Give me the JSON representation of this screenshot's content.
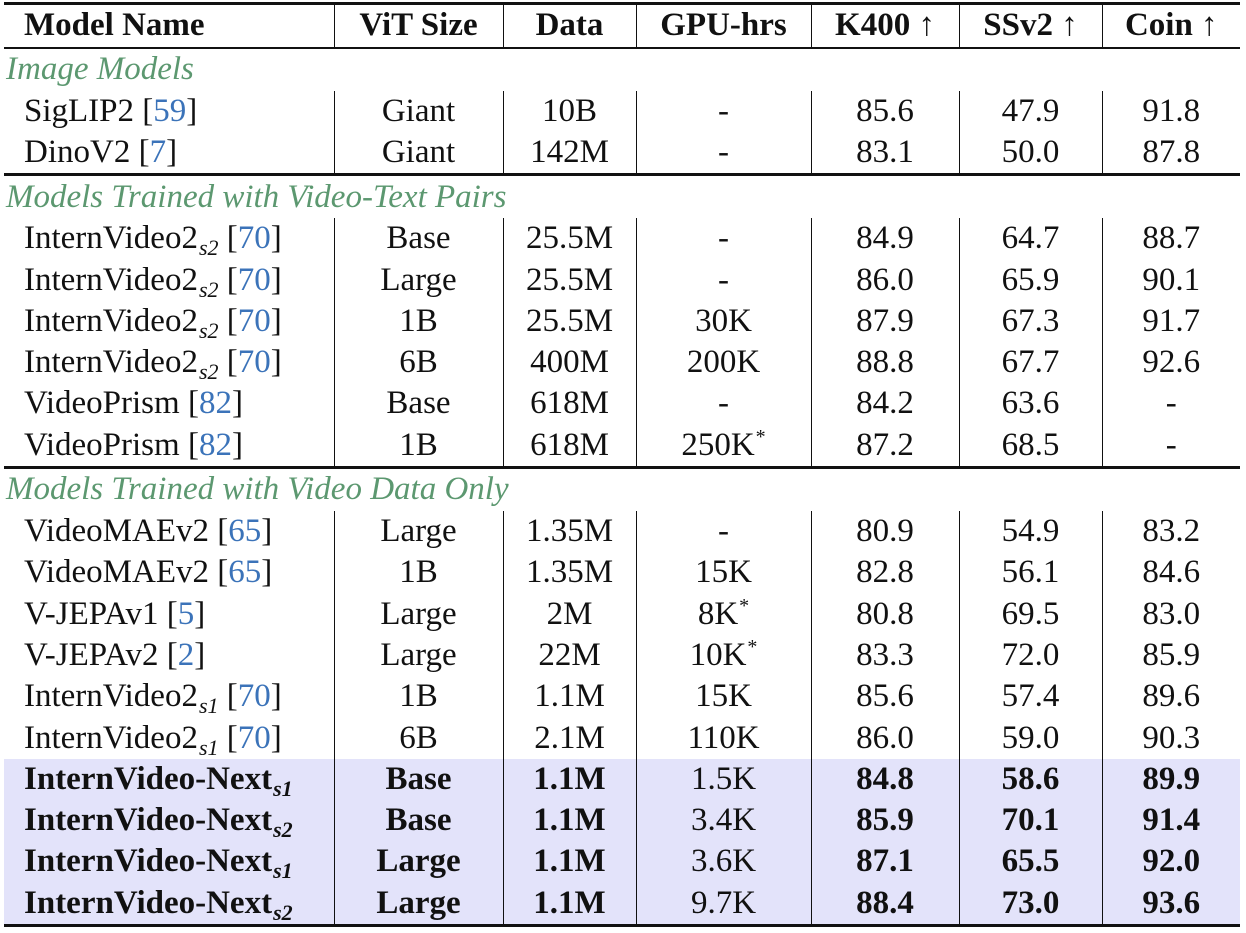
{
  "chart_data": {
    "type": "table",
    "columns": [
      "Model Name",
      "ViT Size",
      "Data",
      "GPU-hrs",
      "K400 ↑",
      "SSv2 ↑",
      "Coin ↑"
    ],
    "groups": [
      {
        "title": "Image Models",
        "rows": [
          {
            "name": "SigLIP2",
            "sub": "",
            "ref": "59",
            "vit": "Giant",
            "data": "10B",
            "gpu": "-",
            "gpu_star": "",
            "k400": "85.6",
            "ssv2": "47.9",
            "coin": "91.8"
          },
          {
            "name": "DinoV2",
            "sub": "",
            "ref": "7",
            "vit": "Giant",
            "data": "142M",
            "gpu": "-",
            "gpu_star": "",
            "k400": "83.1",
            "ssv2": "50.0",
            "coin": "87.8"
          }
        ]
      },
      {
        "title": "Models Trained with Video-Text Pairs",
        "rows": [
          {
            "name": "InternVideo2",
            "sub": "s2",
            "ref": "70",
            "vit": "Base",
            "data": "25.5M",
            "gpu": "-",
            "gpu_star": "",
            "k400": "84.9",
            "ssv2": "64.7",
            "coin": "88.7"
          },
          {
            "name": "InternVideo2",
            "sub": "s2",
            "ref": "70",
            "vit": "Large",
            "data": "25.5M",
            "gpu": "-",
            "gpu_star": "",
            "k400": "86.0",
            "ssv2": "65.9",
            "coin": "90.1"
          },
          {
            "name": "InternVideo2",
            "sub": "s2",
            "ref": "70",
            "vit": "1B",
            "data": "25.5M",
            "gpu": "30K",
            "gpu_star": "",
            "k400": "87.9",
            "ssv2": "67.3",
            "coin": "91.7"
          },
          {
            "name": "InternVideo2",
            "sub": "s2",
            "ref": "70",
            "vit": "6B",
            "data": "400M",
            "gpu": "200K",
            "gpu_star": "",
            "k400": "88.8",
            "ssv2": "67.7",
            "coin": "92.6"
          },
          {
            "name": "VideoPrism",
            "sub": "",
            "ref": "82",
            "vit": "Base",
            "data": "618M",
            "gpu": "-",
            "gpu_star": "",
            "k400": "84.2",
            "ssv2": "63.6",
            "coin": "-"
          },
          {
            "name": "VideoPrism",
            "sub": "",
            "ref": "82",
            "vit": "1B",
            "data": "618M",
            "gpu": "250K",
            "gpu_star": "*",
            "k400": "87.2",
            "ssv2": "68.5",
            "coin": "-"
          }
        ]
      },
      {
        "title": "Models Trained with Video Data Only",
        "rows": [
          {
            "name": "VideoMAEv2",
            "sub": "",
            "ref": "65",
            "vit": "Large",
            "data": "1.35M",
            "gpu": "-",
            "gpu_star": "",
            "k400": "80.9",
            "ssv2": "54.9",
            "coin": "83.2"
          },
          {
            "name": "VideoMAEv2",
            "sub": "",
            "ref": "65",
            "vit": "1B",
            "data": "1.35M",
            "gpu": "15K",
            "gpu_star": "",
            "k400": "82.8",
            "ssv2": "56.1",
            "coin": "84.6"
          },
          {
            "name": "V-JEPAv1",
            "sub": "",
            "ref": "5",
            "vit": "Large",
            "data": "2M",
            "gpu": "8K",
            "gpu_star": "*",
            "k400": "80.8",
            "ssv2": "69.5",
            "coin": "83.0"
          },
          {
            "name": "V-JEPAv2",
            "sub": "",
            "ref": "2",
            "vit": "Large",
            "data": "22M",
            "gpu": "10K",
            "gpu_star": "*",
            "k400": "83.3",
            "ssv2": "72.0",
            "coin": "85.9"
          },
          {
            "name": "InternVideo2",
            "sub": "s1",
            "ref": "70",
            "vit": "1B",
            "data": "1.1M",
            "gpu": "15K",
            "gpu_star": "",
            "k400": "85.6",
            "ssv2": "57.4",
            "coin": "89.6"
          },
          {
            "name": "InternVideo2",
            "sub": "s1",
            "ref": "70",
            "vit": "6B",
            "data": "2.1M",
            "gpu": "110K",
            "gpu_star": "",
            "k400": "86.0",
            "ssv2": "59.0",
            "coin": "90.3"
          },
          {
            "name": "InternVideo-Next",
            "sub": "s1",
            "ref": "",
            "vit": "Base",
            "data": "1.1M",
            "gpu": "1.5K",
            "gpu_star": "",
            "k400": "84.8",
            "ssv2": "58.6",
            "coin": "89.9",
            "ours": true
          },
          {
            "name": "InternVideo-Next",
            "sub": "s2",
            "ref": "",
            "vit": "Base",
            "data": "1.1M",
            "gpu": "3.4K",
            "gpu_star": "",
            "k400": "85.9",
            "ssv2": "70.1",
            "coin": "91.4",
            "ours": true
          },
          {
            "name": "InternVideo-Next",
            "sub": "s1",
            "ref": "",
            "vit": "Large",
            "data": "1.1M",
            "gpu": "3.6K",
            "gpu_star": "",
            "k400": "87.1",
            "ssv2": "65.5",
            "coin": "92.0",
            "ours": true
          },
          {
            "name": "InternVideo-Next",
            "sub": "s2",
            "ref": "",
            "vit": "Large",
            "data": "1.1M",
            "gpu": "9.7K",
            "gpu_star": "",
            "k400": "88.4",
            "ssv2": "73.0",
            "coin": "93.6",
            "ours": true
          }
        ]
      }
    ],
    "highlight_color": "#e3e3fa",
    "section_title_color": "#5c9870",
    "reference_color": "#3b73b9"
  }
}
